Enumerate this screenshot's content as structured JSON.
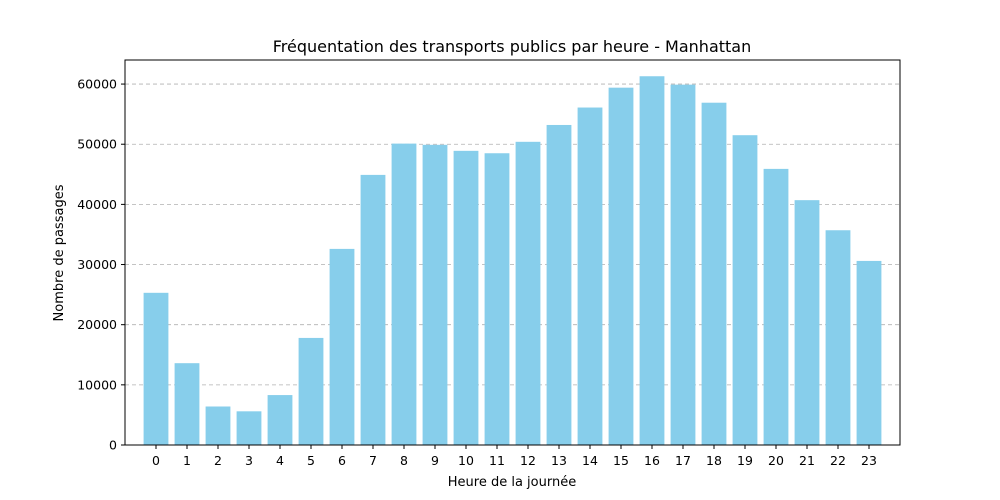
{
  "chart_data": {
    "type": "bar",
    "title": "Fréquentation des transports publics par heure - Manhattan",
    "xlabel": "Heure de la journée",
    "ylabel": "Nombre de passages",
    "categories": [
      "0",
      "1",
      "2",
      "3",
      "4",
      "5",
      "6",
      "7",
      "8",
      "9",
      "10",
      "11",
      "12",
      "13",
      "14",
      "15",
      "16",
      "17",
      "18",
      "19",
      "20",
      "21",
      "22",
      "23"
    ],
    "values": [
      25300,
      13600,
      6400,
      5600,
      8300,
      17800,
      32600,
      44900,
      50100,
      49900,
      48900,
      48500,
      50400,
      53200,
      56100,
      59400,
      61300,
      59900,
      56900,
      51500,
      45900,
      40700,
      35700,
      30600
    ],
    "ylim": [
      0,
      64000
    ],
    "yticks": [
      0,
      10000,
      20000,
      30000,
      40000,
      50000,
      60000
    ],
    "grid": "y-dashed",
    "bar_color": "#87ceeb"
  }
}
